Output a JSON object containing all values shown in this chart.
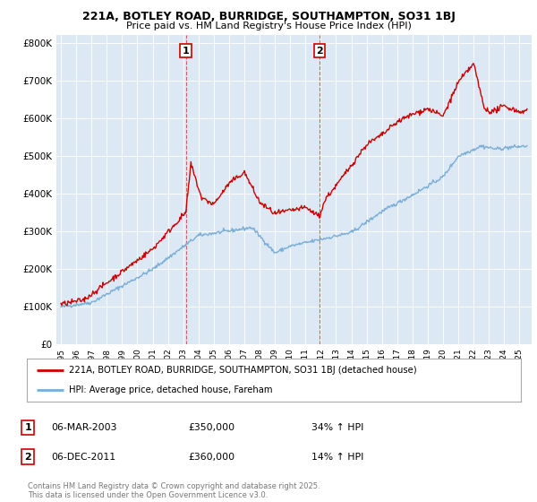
{
  "title_line1": "221A, BOTLEY ROAD, BURRIDGE, SOUTHAMPTON, SO31 1BJ",
  "title_line2": "Price paid vs. HM Land Registry's House Price Index (HPI)",
  "ylabel_ticks": [
    "£0",
    "£100K",
    "£200K",
    "£300K",
    "£400K",
    "£500K",
    "£600K",
    "£700K",
    "£800K"
  ],
  "ytick_values": [
    0,
    100000,
    200000,
    300000,
    400000,
    500000,
    600000,
    700000,
    800000
  ],
  "ylim": [
    0,
    820000
  ],
  "xlim_start": 1994.7,
  "xlim_end": 2025.8,
  "xtick_years": [
    1995,
    1996,
    1997,
    1998,
    1999,
    2000,
    2001,
    2002,
    2003,
    2004,
    2005,
    2006,
    2007,
    2008,
    2009,
    2010,
    2011,
    2012,
    2013,
    2014,
    2015,
    2016,
    2017,
    2018,
    2019,
    2020,
    2021,
    2022,
    2023,
    2024,
    2025
  ],
  "background_color": "#dce9f5",
  "figure_bg_color": "#ffffff",
  "red_color": "#cc0000",
  "blue_color": "#7aaed6",
  "sale1_x": 2003.18,
  "sale1_label": "1",
  "sale1_date": "06-MAR-2003",
  "sale1_price": "£350,000",
  "sale1_hpi": "34% ↑ HPI",
  "sale2_x": 2011.92,
  "sale2_label": "2",
  "sale2_date": "06-DEC-2011",
  "sale2_price": "£360,000",
  "sale2_hpi": "14% ↑ HPI",
  "legend_label_red": "221A, BOTLEY ROAD, BURRIDGE, SOUTHAMPTON, SO31 1BJ (detached house)",
  "legend_label_blue": "HPI: Average price, detached house, Fareham",
  "footer_text": "Contains HM Land Registry data © Crown copyright and database right 2025.\nThis data is licensed under the Open Government Licence v3.0."
}
